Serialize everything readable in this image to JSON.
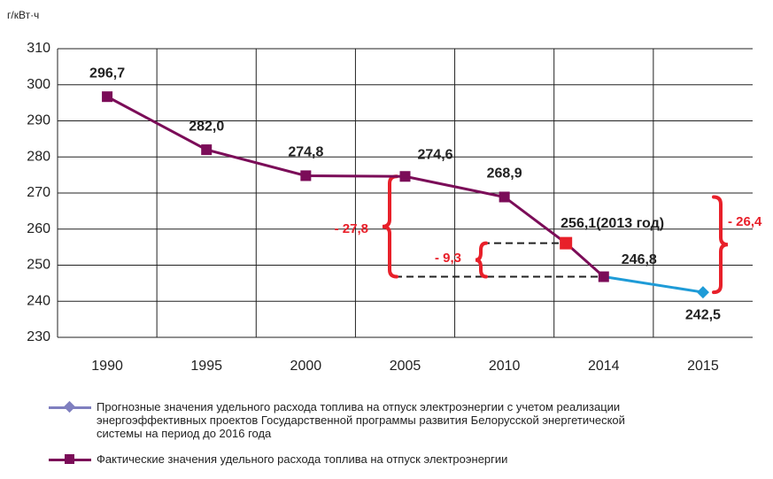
{
  "chart_data": {
    "type": "line",
    "y_label": "г/кВт·ч",
    "categories": [
      "1990",
      "1995",
      "2000",
      "2005",
      "2010",
      "2014",
      "2015"
    ],
    "series": [
      {
        "name": "Прогнозные значения удельного расхода топлива на отпуск электроэнергии с учетом реализации энергоэффективных проектов Государственной программы развития Белорусской энергетической системы на период до 2016 года",
        "color": "#1e9bd7",
        "legend_color": "#7f7fbf",
        "marker": "diamond",
        "values": [
          null,
          null,
          null,
          null,
          null,
          246.8,
          242.5
        ],
        "value_labels": [
          null,
          null,
          null,
          null,
          null,
          null,
          "242,5"
        ]
      },
      {
        "name": "Фактические значения удельного расхода топлива на отпуск электроэнергии",
        "color": "#7b0c58",
        "marker": "square",
        "values": [
          296.7,
          282.0,
          274.8,
          274.6,
          268.9,
          246.8,
          null
        ],
        "value_labels": [
          "296,7",
          "282,0",
          "274,8",
          "274,6",
          "268,9",
          "246,8",
          null
        ]
      }
    ],
    "point_2013": {
      "value": 256.1,
      "label": "256,1(2013 год)",
      "color": "#e8202a"
    },
    "annotations": [
      "- 27,8",
      "- 9,3",
      "- 26,4"
    ],
    "annotation_color": "#e8202a",
    "ylim": [
      230,
      310
    ],
    "yticks": [
      230,
      240,
      250,
      260,
      270,
      280,
      290,
      300,
      310
    ],
    "grid": true
  }
}
